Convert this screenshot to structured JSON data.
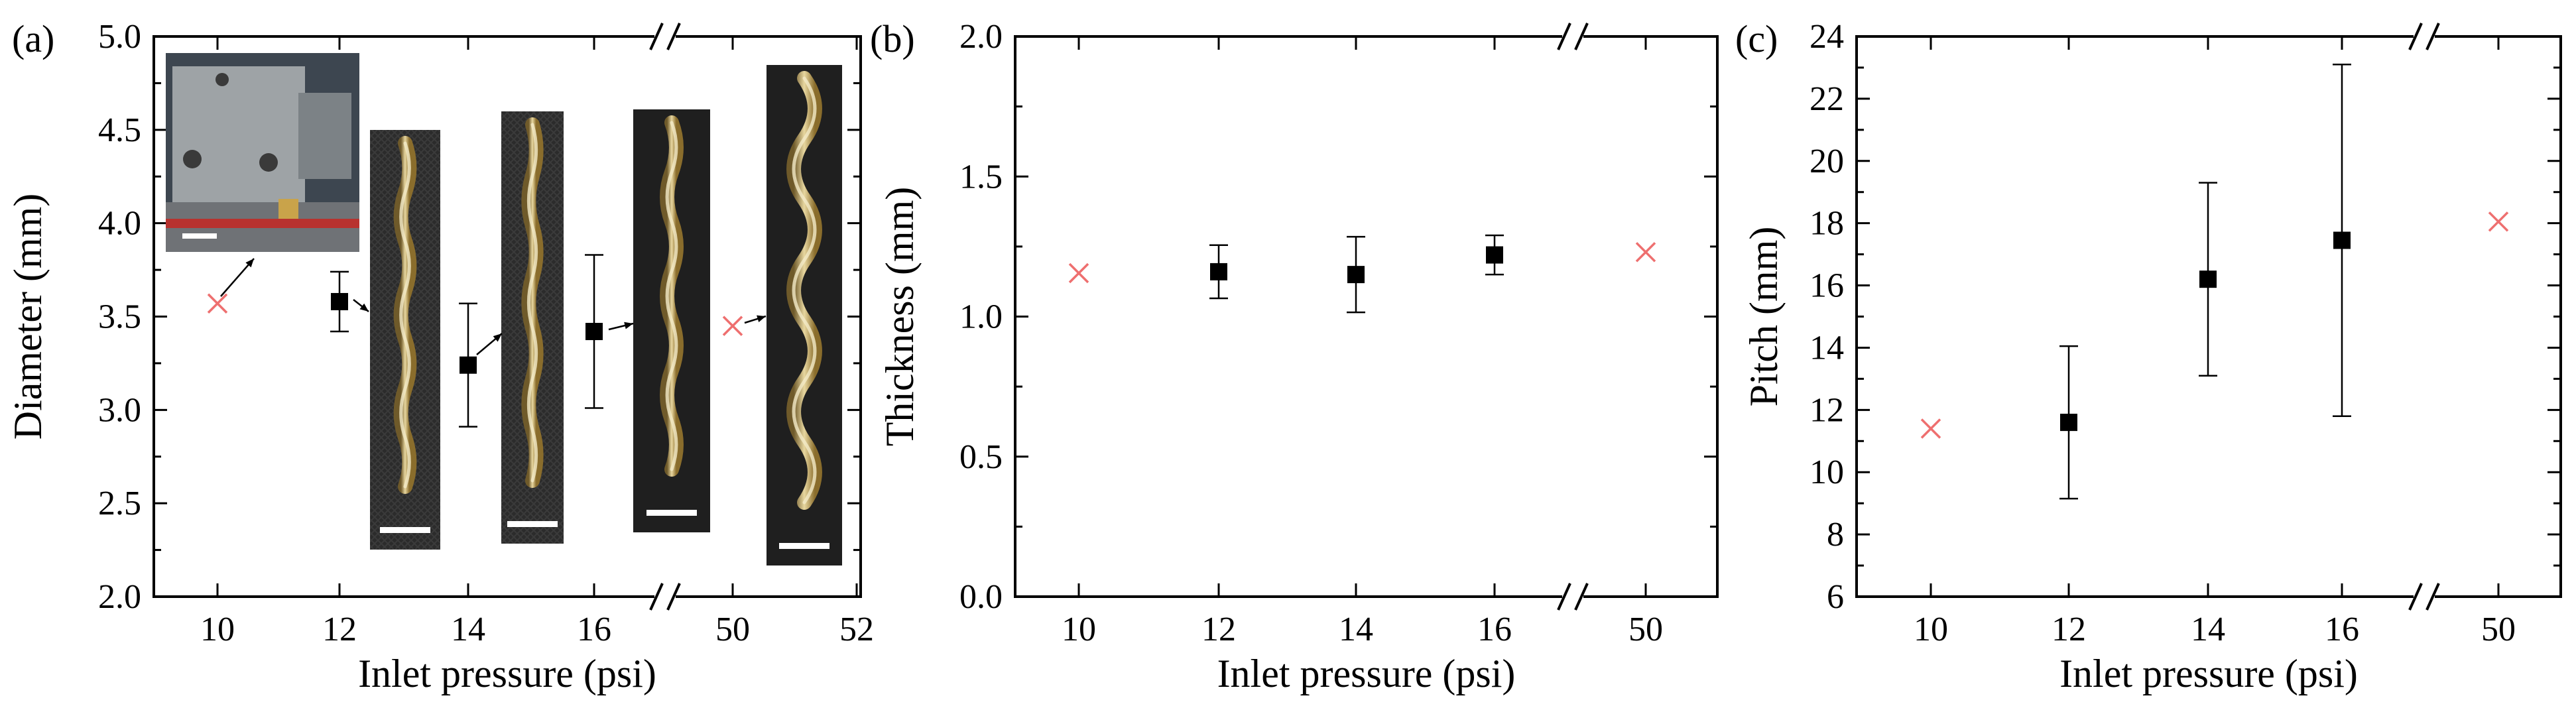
{
  "colors": {
    "measured": "#000000",
    "unstable": "#ee6f6f",
    "photo_background": "#2b2b2b",
    "scale_bar": "#ffffff"
  },
  "chart_data": [
    {
      "panel": "(a)",
      "type": "scatter",
      "xlabel": "Inlet pressure (psi)",
      "ylabel": "Diameter (mm)",
      "ylim": [
        2.0,
        5.0
      ],
      "y_ticks": [
        "2.0",
        "2.5",
        "3.0",
        "3.5",
        "4.0",
        "4.5",
        "5.0"
      ],
      "x_ticks": [
        "10",
        "12",
        "14",
        "16",
        "50",
        "52"
      ],
      "x_break": "between 16 and 50",
      "grid": false,
      "legend": "none",
      "series": [
        {
          "marker": "square",
          "x": [
            12,
            14,
            16
          ],
          "y": [
            3.58,
            3.24,
            3.42
          ],
          "yerr": [
            0.16,
            0.33,
            0.41
          ]
        },
        {
          "marker": "cross",
          "x": [
            10,
            50
          ],
          "y": [
            3.57,
            3.45
          ]
        }
      ],
      "images": [
        {
          "name": "printhead-photo-icon"
        },
        {
          "name": "filament-12psi-photo-icon"
        },
        {
          "name": "filament-14psi-photo-icon"
        },
        {
          "name": "filament-16psi-photo-icon"
        },
        {
          "name": "filament-50psi-photo-icon"
        }
      ]
    },
    {
      "panel": "(b)",
      "type": "scatter",
      "xlabel": "Inlet pressure (psi)",
      "ylabel": "Thickness (mm)",
      "ylim": [
        0.0,
        2.0
      ],
      "y_ticks": [
        "0.0",
        "0.5",
        "1.0",
        "1.5",
        "2.0"
      ],
      "x_ticks": [
        "10",
        "12",
        "14",
        "16",
        "50"
      ],
      "x_break": "between 16 and 50",
      "grid": false,
      "legend": "none",
      "series": [
        {
          "marker": "square",
          "x": [
            12,
            14,
            16
          ],
          "y": [
            1.16,
            1.15,
            1.22
          ],
          "yerr": [
            0.095,
            0.135,
            0.07
          ]
        },
        {
          "marker": "cross",
          "x": [
            10,
            50
          ],
          "y": [
            1.155,
            1.23
          ]
        }
      ]
    },
    {
      "panel": "(c)",
      "type": "scatter",
      "xlabel": "Inlet pressure (psi)",
      "ylabel": "Pitch (mm)",
      "ylim": [
        6,
        24
      ],
      "y_ticks": [
        "6",
        "8",
        "10",
        "12",
        "14",
        "16",
        "18",
        "20",
        "22",
        "24"
      ],
      "x_ticks": [
        "10",
        "12",
        "14",
        "16",
        "50"
      ],
      "x_break": "between 16 and 50",
      "grid": false,
      "legend": "none",
      "series": [
        {
          "marker": "square",
          "x": [
            12,
            14,
            16
          ],
          "y": [
            11.6,
            16.2,
            17.45
          ],
          "yerr": [
            2.45,
            3.1,
            5.65
          ]
        },
        {
          "marker": "cross",
          "x": [
            10,
            50
          ],
          "y": [
            11.4,
            18.05
          ]
        }
      ]
    }
  ]
}
